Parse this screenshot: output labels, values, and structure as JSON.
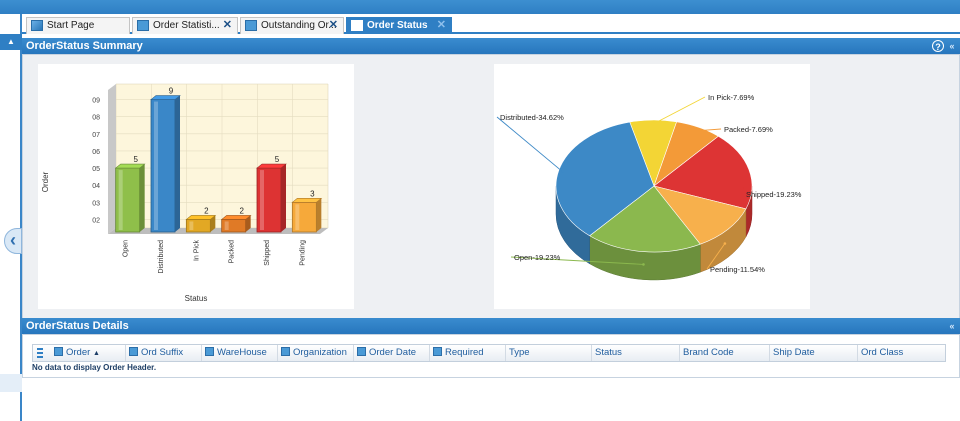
{
  "tabs": [
    {
      "label": "Start Page",
      "closable": false
    },
    {
      "label": "Order Statisti...",
      "closable": true
    },
    {
      "label": "Outstanding Or...",
      "closable": true
    },
    {
      "label": "Order Status",
      "closable": true,
      "active": true
    }
  ],
  "close_glyph": "✕",
  "summary": {
    "title": "OrderStatus Summary"
  },
  "bar_chart": {
    "type": "bar",
    "categories": [
      "Open",
      "Distributed",
      "In Pick",
      "Packed",
      "Shipped",
      "Pending"
    ],
    "values": [
      5,
      9,
      2,
      2,
      5,
      3
    ],
    "colors": [
      "#8fbf4a",
      "#3a87c8",
      "#e2a824",
      "#e07a26",
      "#dd3333",
      "#f6a93a"
    ],
    "yticks": [
      "02",
      "03",
      "04",
      "05",
      "06",
      "07",
      "08",
      "09"
    ],
    "ylabel": "Order",
    "xlabel": "Status"
  },
  "pie_chart": {
    "type": "pie",
    "slices": [
      {
        "label": "In Pick-7.69%",
        "value": 7.69,
        "color": "#f3d535"
      },
      {
        "label": "Packed-7.69%",
        "value": 7.69,
        "color": "#f39a38"
      },
      {
        "label": "Shipped-19.23%",
        "value": 19.23,
        "color": "#dd3434"
      },
      {
        "label": "Pending-11.54%",
        "value": 11.54,
        "color": "#f7b04c"
      },
      {
        "label": "Open-19.23%",
        "value": 19.23,
        "color": "#8bb84e"
      },
      {
        "label": "Distributed-34.62%",
        "value": 34.62,
        "color": "#3d89c6"
      }
    ]
  },
  "details": {
    "title": "OrderStatus Details",
    "columns": [
      {
        "label": "Order",
        "icon": true,
        "sort": "▲"
      },
      {
        "label": "Ord Suffix",
        "icon": true
      },
      {
        "label": "WareHouse",
        "icon": true
      },
      {
        "label": "Organization",
        "icon": true
      },
      {
        "label": "Order Date",
        "icon": true
      },
      {
        "label": "Required",
        "icon": true
      },
      {
        "label": "Type",
        "icon": false
      },
      {
        "label": "Status",
        "icon": false
      },
      {
        "label": "Brand Code",
        "icon": false
      },
      {
        "label": "Ship Date",
        "icon": false
      },
      {
        "label": "Ord Class",
        "icon": false
      }
    ],
    "empty_message": "No data to display Order Header."
  },
  "glyphs": {
    "up_arrow": "▲",
    "collapse_left": "‹",
    "help": "?",
    "collapse_panel": "«"
  }
}
